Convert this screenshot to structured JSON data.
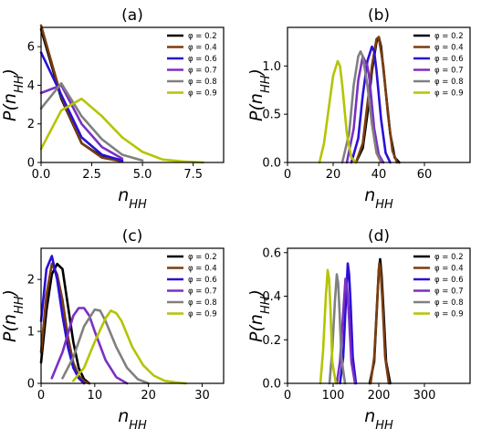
{
  "chart_data": [
    {
      "type": "line",
      "title": "(a)",
      "xlabel": "n_HH",
      "ylabel": "P(n_HH)",
      "xlim": [
        0,
        9
      ],
      "ylim": [
        0,
        7
      ],
      "xticks": [
        "0.0",
        "2.5",
        "5.0",
        "7.5"
      ],
      "xtick_values": [
        0,
        2.5,
        5,
        7.5
      ],
      "yticks": [
        "0",
        "2",
        "4",
        "6"
      ],
      "ytick_values": [
        0,
        2,
        4,
        6
      ],
      "legend_position": "top-right",
      "series": [
        {
          "name": "φ = 0.2",
          "color": "#000000",
          "x": [
            0,
            1,
            2,
            3,
            4
          ],
          "y": [
            6.9,
            3.3,
            1.0,
            0.3,
            0.05
          ]
        },
        {
          "name": "φ = 0.4",
          "color": "#7a3d10",
          "x": [
            0,
            1,
            2,
            3,
            4
          ],
          "y": [
            7.1,
            3.4,
            1.0,
            0.25,
            0.05
          ]
        },
        {
          "name": "φ = 0.6",
          "color": "#2a0fd8",
          "x": [
            0,
            1,
            2,
            3,
            4
          ],
          "y": [
            5.7,
            3.5,
            1.3,
            0.4,
            0.1
          ]
        },
        {
          "name": "φ = 0.7",
          "color": "#7b2fc4",
          "x": [
            0,
            1,
            2,
            3,
            4
          ],
          "y": [
            3.6,
            4.0,
            2.0,
            0.8,
            0.2
          ]
        },
        {
          "name": "φ = 0.8",
          "color": "#808080",
          "x": [
            0,
            1,
            2,
            3,
            4,
            5
          ],
          "y": [
            2.8,
            4.1,
            2.4,
            1.2,
            0.4,
            0.1
          ]
        },
        {
          "name": "φ = 0.9",
          "color": "#b5c400",
          "x": [
            0,
            1,
            2,
            3,
            4,
            5,
            6,
            7,
            8
          ],
          "y": [
            0.7,
            2.7,
            3.3,
            2.4,
            1.3,
            0.55,
            0.15,
            0.05,
            0.0
          ]
        }
      ]
    },
    {
      "type": "line",
      "title": "(b)",
      "xlabel": "n_HH",
      "ylabel": "P(n_HH)",
      "xlim": [
        0,
        80
      ],
      "ylim": [
        0,
        1.4
      ],
      "xticks": [
        "0",
        "20",
        "40",
        "60"
      ],
      "xtick_values": [
        0,
        20,
        40,
        60
      ],
      "yticks": [
        "0.0",
        "0.5",
        "1.0"
      ],
      "ytick_values": [
        0,
        0.5,
        1.0
      ],
      "legend_position": "top-right",
      "series": [
        {
          "name": "φ = 0.2",
          "color": "#000000",
          "x": [
            30,
            33,
            35,
            37,
            39,
            40,
            41,
            43,
            45,
            47,
            49
          ],
          "y": [
            0,
            0.15,
            0.5,
            0.95,
            1.25,
            1.3,
            1.2,
            0.75,
            0.3,
            0.05,
            0
          ]
        },
        {
          "name": "φ = 0.4",
          "color": "#7a3d10",
          "x": [
            30,
            33,
            35,
            37,
            39,
            40,
            42,
            44,
            46,
            48
          ],
          "y": [
            0,
            0.2,
            0.6,
            1.0,
            1.28,
            1.3,
            1.0,
            0.5,
            0.12,
            0
          ]
        },
        {
          "name": "φ = 0.6",
          "color": "#2a0fd8",
          "x": [
            28,
            31,
            33,
            35,
            37,
            38,
            39,
            41,
            43,
            45
          ],
          "y": [
            0,
            0.25,
            0.7,
            1.05,
            1.2,
            1.15,
            0.95,
            0.45,
            0.1,
            0
          ]
        },
        {
          "name": "φ = 0.7",
          "color": "#7b2fc4",
          "x": [
            26,
            29,
            31,
            33,
            34,
            35,
            36,
            38,
            40,
            42
          ],
          "y": [
            0,
            0.35,
            0.85,
            1.1,
            1.05,
            1.0,
            0.85,
            0.35,
            0.08,
            0
          ]
        },
        {
          "name": "φ = 0.8",
          "color": "#808080",
          "x": [
            24,
            27,
            29,
            31,
            32,
            33,
            35,
            37,
            39,
            41
          ],
          "y": [
            0,
            0.3,
            0.8,
            1.1,
            1.15,
            1.1,
            0.8,
            0.4,
            0.1,
            0
          ]
        },
        {
          "name": "φ = 0.9",
          "color": "#b5c400",
          "x": [
            14,
            16,
            18,
            20,
            22,
            23,
            24,
            26,
            28,
            30
          ],
          "y": [
            0,
            0.2,
            0.55,
            0.9,
            1.05,
            1.0,
            0.8,
            0.3,
            0.05,
            0
          ]
        }
      ]
    },
    {
      "type": "line",
      "title": "(c)",
      "xlabel": "n_HH",
      "ylabel": "P(n_HH)",
      "xlim": [
        0,
        34
      ],
      "ylim": [
        0,
        2.6
      ],
      "xticks": [
        "0",
        "10",
        "20",
        "30"
      ],
      "xtick_values": [
        0,
        10,
        20,
        30
      ],
      "yticks": [
        "0",
        "1",
        "2"
      ],
      "ytick_values": [
        0,
        1,
        2
      ],
      "legend_position": "top-right",
      "series": [
        {
          "name": "φ = 0.2",
          "color": "#000000",
          "x": [
            0,
            1,
            2,
            3,
            4,
            5,
            6,
            7,
            8,
            9
          ],
          "y": [
            0.4,
            1.4,
            2.1,
            2.3,
            2.2,
            1.5,
            0.8,
            0.3,
            0.08,
            0
          ]
        },
        {
          "name": "φ = 0.4",
          "color": "#7a3d10",
          "x": [
            0,
            1,
            2,
            3,
            4,
            5,
            6,
            7,
            8,
            9
          ],
          "y": [
            0.6,
            1.7,
            2.3,
            2.1,
            1.6,
            0.9,
            0.4,
            0.15,
            0.04,
            0
          ]
        },
        {
          "name": "φ = 0.6",
          "color": "#2a0fd8",
          "x": [
            0,
            1,
            2,
            3,
            4,
            5,
            6,
            7,
            8
          ],
          "y": [
            1.2,
            2.2,
            2.45,
            2.0,
            1.3,
            0.7,
            0.3,
            0.1,
            0
          ]
        },
        {
          "name": "φ = 0.7",
          "color": "#7b2fc4",
          "x": [
            2,
            4,
            6,
            7,
            8,
            9,
            10,
            12,
            14,
            16
          ],
          "y": [
            0.1,
            0.6,
            1.3,
            1.45,
            1.45,
            1.3,
            1.0,
            0.45,
            0.12,
            0
          ]
        },
        {
          "name": "φ = 0.8",
          "color": "#808080",
          "x": [
            4,
            6,
            8,
            10,
            11,
            12,
            14,
            16,
            18,
            20
          ],
          "y": [
            0.1,
            0.5,
            1.1,
            1.42,
            1.4,
            1.2,
            0.7,
            0.3,
            0.08,
            0
          ]
        },
        {
          "name": "φ = 0.9",
          "color": "#b5c400",
          "x": [
            6,
            8,
            10,
            12,
            13,
            14,
            15,
            17,
            19,
            21,
            23,
            25,
            27
          ],
          "y": [
            0.05,
            0.3,
            0.8,
            1.25,
            1.4,
            1.35,
            1.2,
            0.7,
            0.35,
            0.15,
            0.05,
            0.02,
            0
          ]
        }
      ]
    },
    {
      "type": "line",
      "title": "(d)",
      "xlabel": "n_HH",
      "ylabel": "P(n_HH)",
      "xlim": [
        0,
        400
      ],
      "ylim": [
        0,
        0.62
      ],
      "xticks": [
        "0",
        "100",
        "200",
        "300"
      ],
      "xtick_values": [
        0,
        100,
        200,
        300
      ],
      "yticks": [
        "0.0",
        "0.2",
        "0.4",
        "0.6"
      ],
      "ytick_values": [
        0,
        0.2,
        0.4,
        0.6
      ],
      "legend_position": "top-right",
      "series": [
        {
          "name": "φ = 0.2",
          "color": "#000000",
          "x": [
            180,
            190,
            196,
            200,
            203,
            206,
            210,
            216,
            225
          ],
          "y": [
            0,
            0.1,
            0.35,
            0.52,
            0.57,
            0.5,
            0.35,
            0.1,
            0
          ]
        },
        {
          "name": "φ = 0.4",
          "color": "#7a3d10",
          "x": [
            182,
            190,
            197,
            201,
            204,
            208,
            214,
            222
          ],
          "y": [
            0,
            0.12,
            0.4,
            0.55,
            0.52,
            0.38,
            0.12,
            0
          ]
        },
        {
          "name": "φ = 0.6",
          "color": "#2a0fd8",
          "x": [
            115,
            122,
            128,
            132,
            135,
            138,
            143,
            150
          ],
          "y": [
            0,
            0.12,
            0.38,
            0.55,
            0.5,
            0.38,
            0.12,
            0
          ]
        },
        {
          "name": "φ = 0.7",
          "color": "#7b2fc4",
          "x": [
            108,
            115,
            122,
            127,
            130,
            134,
            140,
            148
          ],
          "y": [
            0,
            0.1,
            0.32,
            0.48,
            0.45,
            0.33,
            0.1,
            0
          ]
        },
        {
          "name": "φ = 0.8",
          "color": "#808080",
          "x": [
            92,
            98,
            104,
            108,
            111,
            114,
            118,
            126
          ],
          "y": [
            0,
            0.15,
            0.38,
            0.5,
            0.46,
            0.33,
            0.12,
            0
          ]
        },
        {
          "name": "φ = 0.9",
          "color": "#b5c400",
          "x": [
            72,
            78,
            84,
            88,
            91,
            94,
            98,
            106
          ],
          "y": [
            0,
            0.15,
            0.4,
            0.52,
            0.48,
            0.35,
            0.1,
            0
          ]
        }
      ]
    }
  ]
}
